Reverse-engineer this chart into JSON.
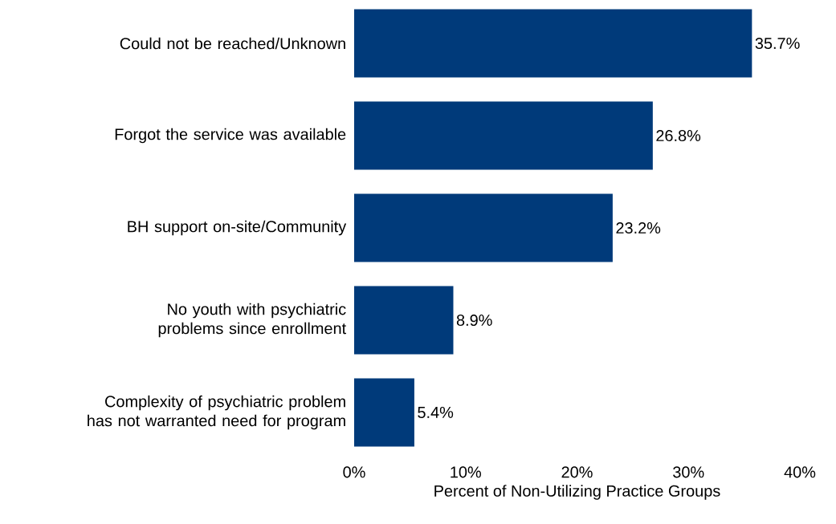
{
  "chart_data": {
    "type": "bar",
    "orientation": "horizontal",
    "categories": [
      "Could not be reached/Unknown",
      "Forgot the service was available",
      "BH support on-site/Community",
      "No youth with psychiatric problems since enrollment",
      "Complexity of psychiatric problem has not warranted need for program"
    ],
    "values": [
      35.7,
      26.8,
      23.2,
      8.9,
      5.4
    ],
    "value_labels": [
      "35.7%",
      "26.8%",
      "23.2%",
      "8.9%",
      "5.4%"
    ],
    "color": "#003a7a",
    "xlabel": "Percent of Non-Utilizing Practice Groups",
    "xlim": [
      0,
      40
    ],
    "xticks": [
      {
        "value": 0,
        "label": "0%"
      },
      {
        "value": 10,
        "label": "10%"
      },
      {
        "value": 20,
        "label": "20%"
      },
      {
        "value": 30,
        "label": "30%"
      },
      {
        "value": 40,
        "label": "40%"
      }
    ],
    "grid": false
  }
}
